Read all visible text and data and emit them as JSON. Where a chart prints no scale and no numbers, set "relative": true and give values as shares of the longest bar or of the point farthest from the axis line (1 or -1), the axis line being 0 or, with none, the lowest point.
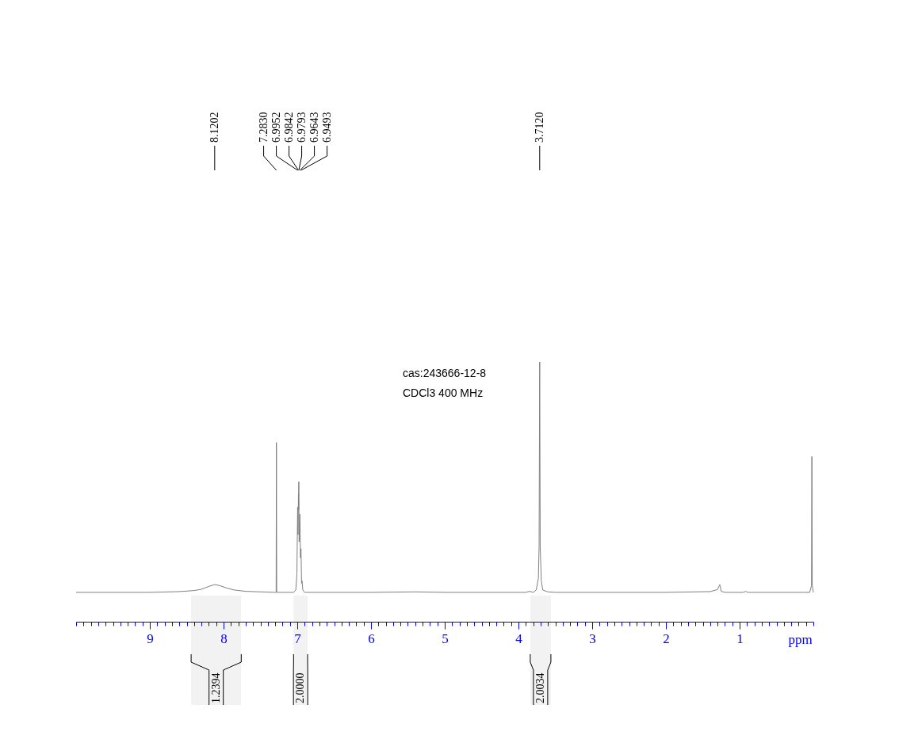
{
  "chart_data": {
    "type": "line",
    "relative": true,
    "xlabel": "ppm",
    "xlim": [
      10,
      0
    ],
    "tick_labels": "x",
    "color": "#7f7f7f",
    "xticks": [
      {
        "value": 0,
        "label": null
      },
      {
        "value": 0.1,
        "label": null
      },
      {
        "value": 0.2,
        "label": null
      },
      {
        "value": 0.3,
        "label": null
      },
      {
        "value": 0.4,
        "label": null
      },
      {
        "value": 0.5,
        "label": null
      },
      {
        "value": 0.6,
        "label": null
      },
      {
        "value": 0.7,
        "label": null
      },
      {
        "value": 0.8,
        "label": null
      },
      {
        "value": 0.9,
        "label": null
      },
      1,
      {
        "value": 1.1,
        "label": null
      },
      {
        "value": 1.2,
        "label": null
      },
      {
        "value": 1.3,
        "label": null
      },
      {
        "value": 1.4,
        "label": null
      },
      {
        "value": 1.5,
        "label": null
      },
      {
        "value": 1.6,
        "label": null
      },
      {
        "value": 1.7,
        "label": null
      },
      {
        "value": 1.8,
        "label": null
      },
      {
        "value": 1.9,
        "label": null
      },
      2,
      {
        "value": 2.1,
        "label": null
      },
      {
        "value": 2.2,
        "label": null
      },
      {
        "value": 2.3,
        "label": null
      },
      {
        "value": 2.4,
        "label": null
      },
      {
        "value": 2.5,
        "label": null
      },
      {
        "value": 2.6,
        "label": null
      },
      {
        "value": 2.7,
        "label": null
      },
      {
        "value": 2.8,
        "label": null
      },
      {
        "value": 2.9,
        "label": null
      },
      3,
      {
        "value": 3.1,
        "label": null
      },
      {
        "value": 3.2,
        "label": null
      },
      {
        "value": 3.3,
        "label": null
      },
      {
        "value": 3.4,
        "label": null
      },
      {
        "value": 3.5,
        "label": null
      },
      {
        "value": 3.6,
        "label": null
      },
      {
        "value": 3.7,
        "label": null
      },
      {
        "value": 3.8,
        "label": null
      },
      {
        "value": 3.9,
        "label": null
      },
      4,
      {
        "value": 4.1,
        "label": null
      },
      {
        "value": 4.2,
        "label": null
      },
      {
        "value": 4.3,
        "label": null
      },
      {
        "value": 4.4,
        "label": null
      },
      {
        "value": 4.5,
        "label": null
      },
      {
        "value": 4.6,
        "label": null
      },
      {
        "value": 4.7,
        "label": null
      },
      {
        "value": 4.8,
        "label": null
      },
      {
        "value": 4.9,
        "label": null
      },
      5,
      {
        "value": 5.1,
        "label": null
      },
      {
        "value": 5.2,
        "label": null
      },
      {
        "value": 5.3,
        "label": null
      },
      {
        "value": 5.4,
        "label": null
      },
      {
        "value": 5.5,
        "label": null
      },
      {
        "value": 5.6,
        "label": null
      },
      {
        "value": 5.7,
        "label": null
      },
      {
        "value": 5.8,
        "label": null
      },
      {
        "value": 5.9,
        "label": null
      },
      6,
      {
        "value": 6.1,
        "label": null
      },
      {
        "value": 6.2,
        "label": null
      },
      {
        "value": 6.3,
        "label": null
      },
      {
        "value": 6.4,
        "label": null
      },
      {
        "value": 6.5,
        "label": null
      },
      {
        "value": 6.6,
        "label": null
      },
      {
        "value": 6.7,
        "label": null
      },
      {
        "value": 6.8,
        "label": null
      },
      {
        "value": 6.9,
        "label": null
      },
      7,
      {
        "value": 7.1,
        "label": null
      },
      {
        "value": 7.2,
        "label": null
      },
      {
        "value": 7.3,
        "label": null
      },
      {
        "value": 7.4,
        "label": null
      },
      {
        "value": 7.5,
        "label": null
      },
      {
        "value": 7.6,
        "label": null
      },
      {
        "value": 7.7,
        "label": null
      },
      {
        "value": 7.8,
        "label": null
      },
      {
        "value": 7.9,
        "label": null
      },
      8,
      {
        "value": 8.1,
        "label": null
      },
      {
        "value": 8.2,
        "label": null
      },
      {
        "value": 8.3,
        "label": null
      },
      {
        "value": 8.4,
        "label": null
      },
      {
        "value": 8.5,
        "label": null
      },
      {
        "value": 8.6,
        "label": null
      },
      {
        "value": 8.7,
        "label": null
      },
      {
        "value": 8.8,
        "label": null
      },
      {
        "value": 8.9,
        "label": null
      },
      9,
      {
        "value": 9.1,
        "label": null
      },
      {
        "value": 9.2,
        "label": null
      },
      {
        "value": 9.3,
        "label": null
      },
      {
        "value": 9.4,
        "label": null
      },
      {
        "value": 9.5,
        "label": null
      },
      {
        "value": 9.6,
        "label": null
      },
      {
        "value": 9.7,
        "label": null
      },
      {
        "value": 9.8,
        "label": null
      },
      {
        "value": 9.9,
        "label": null
      },
      {
        "value": 10,
        "label": null
      }
    ],
    "x": [
      10,
      9,
      8.6,
      8.4,
      8.3,
      8.2,
      8.12,
      8.05,
      7.95,
      7.85,
      7.7,
      7.5,
      7.3,
      7.287,
      7.283,
      7.279,
      7.26,
      7.05,
      7.02,
      7.005,
      6.9952,
      6.99,
      6.9842,
      6.982,
      6.9793,
      6.975,
      6.9643,
      6.957,
      6.9493,
      6.942,
      6.935,
      6.925,
      6.9,
      6,
      5.4,
      5,
      3.9,
      3.85,
      3.8,
      3.76,
      3.73,
      3.72,
      3.712,
      3.705,
      3.69,
      3.67,
      3.6,
      3.5,
      2,
      1.4,
      1.3,
      1.27,
      1.25,
      1.2,
      0.95,
      0.92,
      0.89,
      0.05,
      0.025,
      0.02,
      0.015,
      0
    ],
    "values": [
      0.113,
      0.113,
      0.116,
      0.12,
      0.125,
      0.136,
      0.143,
      0.139,
      0.129,
      0.122,
      0.117,
      0.115,
      0.113,
      0.113,
      0.69,
      0.113,
      0.113,
      0.113,
      0.122,
      0.184,
      0.441,
      0.335,
      0.494,
      0.432,
      0.539,
      0.308,
      0.414,
      0.246,
      0.281,
      0.148,
      0.157,
      0.122,
      0.113,
      0.113,
      0.115,
      0.113,
      0.113,
      0.117,
      0.113,
      0.122,
      0.166,
      0.29,
      1,
      0.29,
      0.157,
      0.122,
      0.115,
      0.113,
      0.113,
      0.116,
      0.124,
      0.143,
      0.117,
      0.113,
      0.113,
      0.117,
      0.113,
      0.113,
      0.139,
      0.636,
      0.139,
      0.113
    ],
    "annotations": [
      {
        "text": "8.1202",
        "x": 8.1202
      },
      {
        "text": "7.2830",
        "x": 7.283
      },
      {
        "text": "6.9952",
        "x": 6.9952
      },
      {
        "text": "6.9842",
        "x": 6.9842
      },
      {
        "text": "6.9793",
        "x": 6.9793
      },
      {
        "text": "6.9643",
        "x": 6.9643
      },
      {
        "text": "6.9493",
        "x": 6.9493
      },
      {
        "text": "3.7120",
        "x": 3.712
      },
      "cas:243666-12-8",
      "CDCl3   400 MHz"
    ],
    "bands": [
      {
        "axis": "x",
        "from": 8.44,
        "to": 7.76,
        "label": "1.2394"
      },
      {
        "axis": "x",
        "from": 7.05,
        "to": 6.86,
        "label": "2.0000"
      },
      {
        "axis": "x",
        "from": 3.84,
        "to": 3.56,
        "label": "2.0034"
      }
    ]
  }
}
